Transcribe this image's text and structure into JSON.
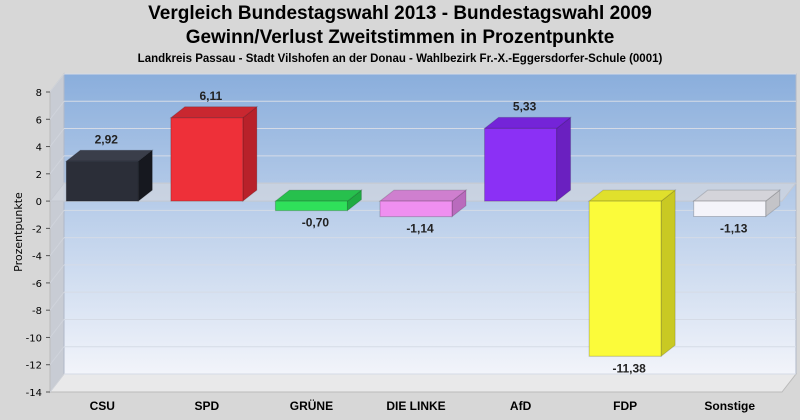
{
  "titles": {
    "line1": "Vergleich Bundestagswahl 2013 - Bundestagswahl 2009",
    "line2": "Gewinn/Verlust Zweitstimmen in Prozentpunkte",
    "subtitle": "Landkreis Passau - Stadt Vilshofen an der Donau - Wahlbezirk Fr.-X.-Eggersdorfer-Schule (0001)"
  },
  "chart_data": {
    "type": "bar",
    "title": "Vergleich Bundestagswahl 2013 - Bundestagswahl 2009",
    "subtitle": "Gewinn/Verlust Zweitstimmen in Prozentpunkte",
    "ylabel": "Prozentpunkte",
    "xlabel": "",
    "ylim": [
      -14,
      8
    ],
    "yticks": [
      8,
      6,
      4,
      2,
      0,
      -2,
      -4,
      -6,
      -8,
      -10,
      -12,
      -14
    ],
    "grid": true,
    "categories": [
      "CSU",
      "SPD",
      "GRÜNE",
      "DIE LINKE",
      "AfD",
      "FDP",
      "Sonstige"
    ],
    "values": [
      2.92,
      6.11,
      -0.7,
      -1.14,
      5.33,
      -11.38,
      -1.13
    ],
    "value_labels": [
      "2,92",
      "6,11",
      "-0,70",
      "-1,14",
      "5,33",
      "-11,38",
      "-1,13"
    ],
    "colors": [
      "#2b2e38",
      "#ee3039",
      "#2fe05a",
      "#ef8ff0",
      "#8b30f5",
      "#fbfb3a",
      "#f4f4fa"
    ],
    "side_colors": [
      "#16181f",
      "#b8212a",
      "#1faa42",
      "#b96bbd",
      "#6a20c0",
      "#c9c923",
      "#c4c4c8"
    ],
    "top_colors": [
      "#3a3e4a",
      "#c92730",
      "#27c04d",
      "#cf7fcf",
      "#7424d8",
      "#e0e02c",
      "#d4d4da"
    ]
  }
}
